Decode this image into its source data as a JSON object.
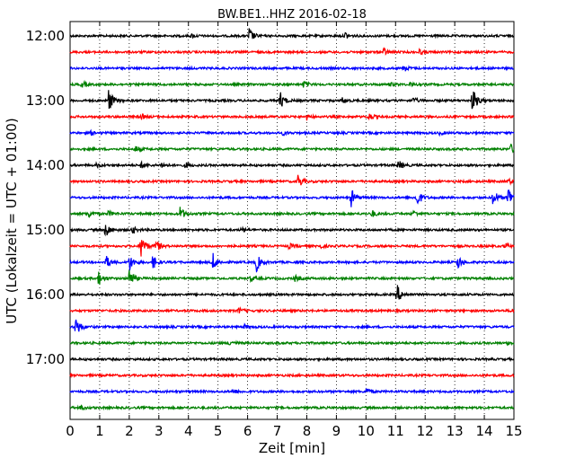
{
  "chart_data": {
    "type": "line",
    "title": "BW.BE1..HHZ 2016-02-18",
    "xlabel": "Zeit  [min]",
    "ylabel": "UTC (Lokalzeit = UTC + 01:00)",
    "xlim": [
      0,
      15
    ],
    "xticks": [
      "0",
      "1",
      "2",
      "3",
      "4",
      "5",
      "6",
      "7",
      "8",
      "9",
      "10",
      "11",
      "12",
      "13",
      "14",
      "15"
    ],
    "yticks": [
      "12:00",
      "13:00",
      "14:00",
      "15:00",
      "16:00",
      "17:00"
    ],
    "grid": "vertical dotted at each minute",
    "trace_interval_minutes": 15,
    "colors": [
      "#000000",
      "#ff0000",
      "#0000ff",
      "#008000"
    ],
    "series": [
      {
        "start": "12:00",
        "color": "#000000",
        "events": [
          {
            "t": 6.05,
            "a": 9
          },
          {
            "t": 9.3,
            "a": 4
          },
          {
            "t": 4.1,
            "a": 2
          }
        ]
      },
      {
        "start": "12:15",
        "color": "#ff0000",
        "events": [
          {
            "t": 10.6,
            "a": 4
          },
          {
            "t": 11.8,
            "a": 2.5
          }
        ]
      },
      {
        "start": "12:30",
        "color": "#0000ff",
        "events": [
          {
            "t": 11.3,
            "a": 3
          }
        ]
      },
      {
        "start": "12:45",
        "color": "#008000",
        "events": [
          {
            "t": 0.4,
            "a": 4
          },
          {
            "t": 7.9,
            "a": 4
          },
          {
            "t": 10.8,
            "a": 2
          },
          {
            "t": 11.5,
            "a": 2
          }
        ]
      },
      {
        "start": "13:00",
        "color": "#000000",
        "events": [
          {
            "t": 1.3,
            "a": 14
          },
          {
            "t": 7.1,
            "a": 10
          },
          {
            "t": 9.2,
            "a": 3
          },
          {
            "t": 11.6,
            "a": 3
          },
          {
            "t": 13.6,
            "a": 15
          }
        ]
      },
      {
        "start": "13:15",
        "color": "#ff0000",
        "events": [
          {
            "t": 2.4,
            "a": 3
          },
          {
            "t": 8.0,
            "a": 3
          },
          {
            "t": 10.1,
            "a": 4
          }
        ]
      },
      {
        "start": "13:30",
        "color": "#0000ff",
        "events": [
          {
            "t": 0.7,
            "a": 2
          },
          {
            "t": 7.2,
            "a": 2
          },
          {
            "t": 12.5,
            "a": 2
          }
        ]
      },
      {
        "start": "13:45",
        "color": "#008000",
        "events": [
          {
            "t": 2.2,
            "a": 4
          },
          {
            "t": 14.9,
            "a": 5
          }
        ]
      },
      {
        "start": "14:00",
        "color": "#000000",
        "events": [
          {
            "t": 0.9,
            "a": 2
          },
          {
            "t": 2.4,
            "a": 3
          },
          {
            "t": 3.1,
            "a": 3
          },
          {
            "t": 3.9,
            "a": 3
          },
          {
            "t": 11.1,
            "a": 5
          }
        ]
      },
      {
        "start": "14:15",
        "color": "#ff0000",
        "events": [
          {
            "t": 7.7,
            "a": 8
          },
          {
            "t": 14.8,
            "a": 3
          }
        ]
      },
      {
        "start": "14:30",
        "color": "#0000ff",
        "events": [
          {
            "t": 9.5,
            "a": 10
          },
          {
            "t": 11.7,
            "a": 12
          },
          {
            "t": 14.3,
            "a": 10
          },
          {
            "t": 14.8,
            "a": 14
          }
        ]
      },
      {
        "start": "14:45",
        "color": "#008000",
        "events": [
          {
            "t": 0.6,
            "a": 5
          },
          {
            "t": 1.3,
            "a": 3
          },
          {
            "t": 3.7,
            "a": 9
          },
          {
            "t": 10.2,
            "a": 4
          },
          {
            "t": 11.6,
            "a": 3
          }
        ]
      },
      {
        "start": "15:00",
        "color": "#000000",
        "events": [
          {
            "t": 1.2,
            "a": 9
          },
          {
            "t": 2.1,
            "a": 4
          },
          {
            "t": 5.8,
            "a": 2
          }
        ]
      },
      {
        "start": "15:15",
        "color": "#ff0000",
        "events": [
          {
            "t": 2.4,
            "a": 14
          },
          {
            "t": 2.9,
            "a": 7
          },
          {
            "t": 7.4,
            "a": 3
          },
          {
            "t": 8.4,
            "a": 3
          },
          {
            "t": 14.7,
            "a": 3
          }
        ]
      },
      {
        "start": "15:30",
        "color": "#0000ff",
        "events": [
          {
            "t": 1.2,
            "a": 8
          },
          {
            "t": 2.0,
            "a": 10
          },
          {
            "t": 2.8,
            "a": 8
          },
          {
            "t": 4.8,
            "a": 12
          },
          {
            "t": 6.3,
            "a": 10
          },
          {
            "t": 13.1,
            "a": 8
          }
        ]
      },
      {
        "start": "15:45",
        "color": "#008000",
        "events": [
          {
            "t": 0.95,
            "a": 9
          },
          {
            "t": 2.0,
            "a": 12
          },
          {
            "t": 6.1,
            "a": 3
          },
          {
            "t": 7.6,
            "a": 3
          }
        ]
      },
      {
        "start": "16:00",
        "color": "#000000",
        "events": [
          {
            "t": 11.05,
            "a": 11
          }
        ]
      },
      {
        "start": "16:15",
        "color": "#ff0000",
        "events": [
          {
            "t": 5.7,
            "a": 3
          },
          {
            "t": 14.9,
            "a": 2
          }
        ]
      },
      {
        "start": "16:30",
        "color": "#0000ff",
        "events": [
          {
            "t": 0.2,
            "a": 12
          },
          {
            "t": 5.9,
            "a": 2
          }
        ]
      },
      {
        "start": "16:45",
        "color": "#008000",
        "events": [
          {
            "t": 5.4,
            "a": 3
          },
          {
            "t": 14.8,
            "a": 2
          }
        ]
      },
      {
        "start": "17:00",
        "color": "#000000",
        "events": []
      },
      {
        "start": "17:15",
        "color": "#ff0000",
        "events": []
      },
      {
        "start": "17:30",
        "color": "#0000ff",
        "events": [
          {
            "t": 5.5,
            "a": 3
          },
          {
            "t": 10.0,
            "a": 4
          }
        ]
      },
      {
        "start": "17:45",
        "color": "#008000",
        "events": [
          {
            "t": 0.3,
            "a": 4
          }
        ]
      }
    ]
  }
}
